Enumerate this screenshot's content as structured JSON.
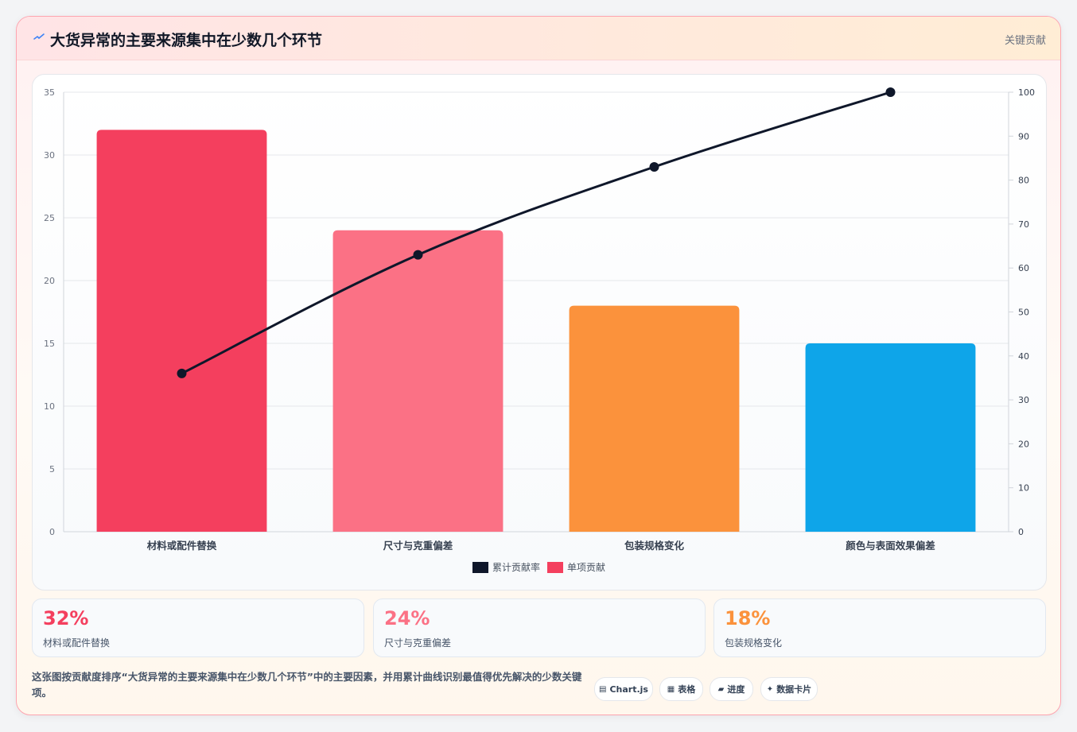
{
  "header": {
    "title": "大货异常的主要来源集中在少数几个环节",
    "tag": "关键贡献"
  },
  "chart_data": {
    "type": "bar",
    "categories": [
      "材料或配件替换",
      "尺寸与克重偏差",
      "包装规格变化",
      "颜色与表面效果偏差"
    ],
    "series": [
      {
        "name": "单项贡献",
        "type": "bar",
        "axis": "left",
        "values": [
          32,
          24,
          18,
          15
        ],
        "colors": [
          "#f43f5e",
          "#fb7185",
          "#fb923c",
          "#0ea5e9"
        ]
      },
      {
        "name": "累计贡献率",
        "type": "line",
        "axis": "right",
        "values": [
          36,
          63,
          83,
          100
        ],
        "color": "#0f172a"
      }
    ],
    "ylim_left": [
      0,
      35
    ],
    "ylim_right": [
      0,
      100
    ],
    "yticks_left": [
      "0",
      "5",
      "10",
      "15",
      "20",
      "25",
      "30",
      "35"
    ],
    "yticks_right": [
      "0",
      "10",
      "20",
      "30",
      "40",
      "50",
      "60",
      "70",
      "80",
      "90",
      "100"
    ],
    "legend": [
      {
        "label": "累计贡献率",
        "color": "#0f172a"
      },
      {
        "label": "单项贡献",
        "color": "#f43f5e"
      }
    ],
    "legend_position": "bottom",
    "grid": true
  },
  "stats": [
    {
      "value": "32%",
      "label": "材料或配件替换",
      "color": "#f43f5e"
    },
    {
      "value": "24%",
      "label": "尺寸与克重偏差",
      "color": "#fb7185"
    },
    {
      "value": "18%",
      "label": "包装规格变化",
      "color": "#fb923c"
    }
  ],
  "footer": {
    "text": "这张图按贡献度排序“大货异常的主要来源集中在少数几个环节”中的主要因素，并用累计曲线识别最值得优先解决的少数关键项。"
  },
  "chips": [
    {
      "icon": "▤",
      "label": "Chart.js",
      "icon_name": "chart-icon"
    },
    {
      "icon": "▦",
      "label": "表格",
      "icon_name": "table-icon"
    },
    {
      "icon": "▰",
      "label": "进度",
      "icon_name": "progress-icon"
    },
    {
      "icon": "✦",
      "label": "数据卡片",
      "icon_name": "sparkle-icon"
    }
  ]
}
